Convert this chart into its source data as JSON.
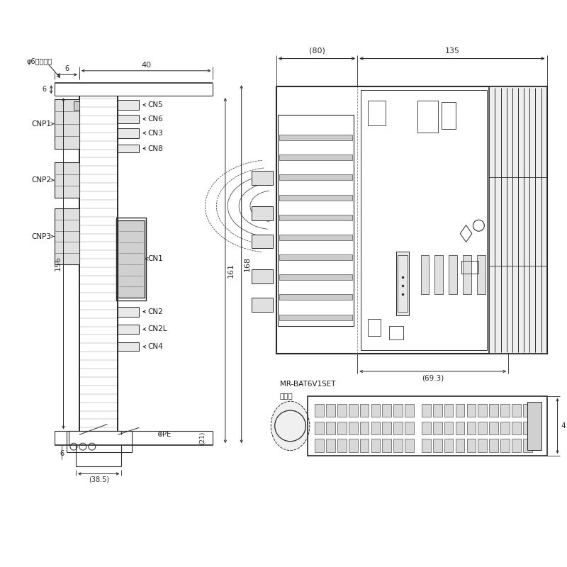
{
  "bg_color": "#ffffff",
  "line_color": "#2a2a2a",
  "dim_color": "#2a2a2a",
  "text_color": "#1a1a1a",
  "annotation_left": "φ6取付け穴",
  "pe_label": "⊕PE",
  "label_bat": "MR-BAT6V1SET",
  "label_bat2": "装着時"
}
